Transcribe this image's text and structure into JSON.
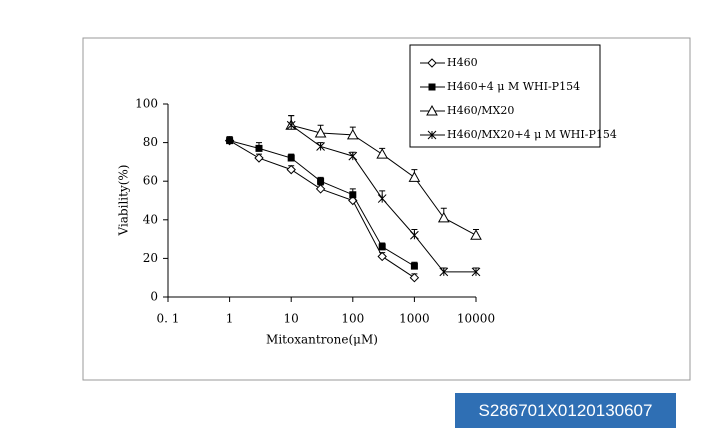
{
  "chart_data": {
    "type": "line",
    "xlabel": "Mitoxantrone(μM)",
    "ylabel": "Viability(%)",
    "xscale": "log",
    "xlim": [
      0.1,
      10000
    ],
    "xticks": [
      {
        "value": 0.1,
        "label": "0. 1"
      },
      1,
      10,
      100,
      1000,
      10000
    ],
    "ylim": [
      0,
      100
    ],
    "yticks": [
      0,
      20,
      40,
      60,
      80,
      100
    ],
    "grid": false,
    "legend": "upper right",
    "series": [
      {
        "name": "H460",
        "color": "#000000",
        "marker": "diamond",
        "fill": "none",
        "x": [
          1,
          3,
          10,
          30,
          100,
          300,
          1000
        ],
        "values": [
          81,
          72,
          66,
          56,
          50,
          21,
          10
        ],
        "errors": [
          2,
          2,
          2,
          2,
          2,
          2,
          2
        ]
      },
      {
        "name": "H460+4 μ M WHI-P154",
        "color": "#000000",
        "marker": "square",
        "fill": "#000000",
        "x": [
          1,
          3,
          10,
          30,
          100,
          300,
          1000
        ],
        "values": [
          81,
          77,
          72,
          60,
          53,
          26,
          16
        ],
        "errors": [
          2,
          3,
          2,
          2,
          3,
          2,
          2
        ]
      },
      {
        "name": "H460/MX20",
        "color": "#000000",
        "marker": "triangle",
        "fill": "none",
        "x": [
          10,
          30,
          100,
          300,
          1000,
          3000,
          10000
        ],
        "values": [
          89,
          85,
          84,
          74,
          62,
          41,
          32
        ],
        "errors": [
          5,
          4,
          4,
          3,
          4,
          5,
          3
        ]
      },
      {
        "name": "H460/MX20+4 μ M WHI-P154",
        "color": "#000000",
        "marker": "star",
        "fill": "none",
        "x": [
          10,
          30,
          100,
          300,
          1000,
          3000,
          10000
        ],
        "values": [
          89,
          78,
          73,
          51,
          32,
          13,
          13
        ],
        "errors": [
          5,
          2,
          2,
          4,
          3,
          2,
          2
        ]
      }
    ]
  },
  "label": "S286701X0120130607"
}
